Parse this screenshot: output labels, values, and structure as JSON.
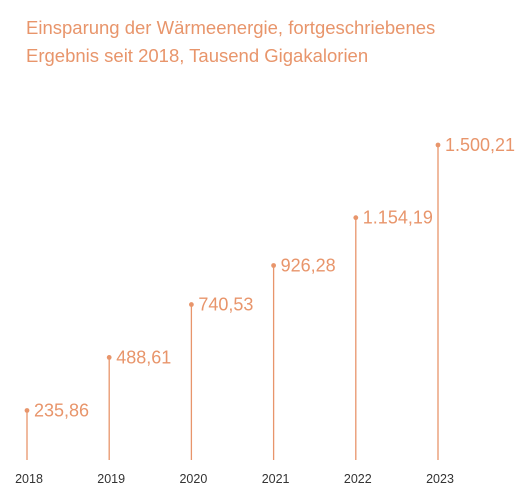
{
  "chart_data": {
    "type": "bar",
    "style": "lollipop",
    "title_line1": "Einsparung der Wärmeenergie, fortgeschriebenes",
    "title_line2": "Ergebnis seit 2018, Tausend Gigakalorien",
    "categories": [
      "2018",
      "2019",
      "2020",
      "2021",
      "2022",
      "2023"
    ],
    "values": [
      235.86,
      488.61,
      740.53,
      926.28,
      1154.19,
      1500.21
    ],
    "value_labels": [
      "235,86",
      "488,61",
      "740,53",
      "926,28",
      "1.154,19",
      "1.500,21"
    ],
    "ylim": [
      0,
      1700
    ],
    "grid": false,
    "color": "#E8956B"
  }
}
